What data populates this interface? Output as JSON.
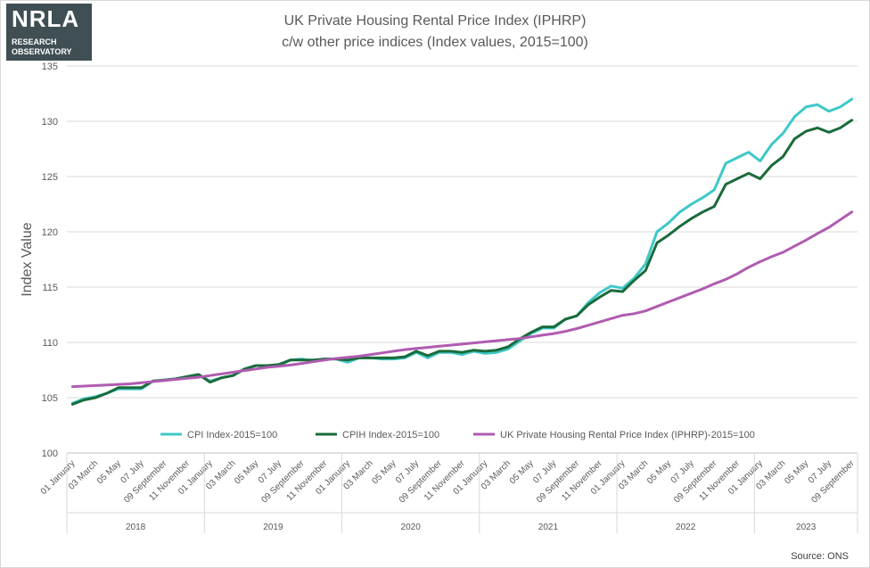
{
  "logo": {
    "brand": "NRLA",
    "line1": "RESEARCH",
    "line2": "OBSERVATORY",
    "colors": {
      "bg": "#3f4f54",
      "accent": "#7dbf2f"
    }
  },
  "title_line1": "UK Private Housing Rental Price Index (IPHRP)",
  "title_line2": "c/w other price indices (Index values, 2015=100)",
  "source": "Source: ONS",
  "chart_data": {
    "type": "line",
    "title": "UK Private Housing Rental Price Index (IPHRP) c/w other price indices (Index values, 2015=100)",
    "ylabel": "Index Value",
    "xlabel": "",
    "ylim": [
      100,
      135
    ],
    "yticks": [
      100,
      105,
      110,
      115,
      120,
      125,
      130,
      135
    ],
    "grid": true,
    "legend_position": "bottom-inside",
    "x_tick_labels": [
      "01 January",
      "03 March",
      "05 May",
      "07 July",
      "09 September",
      "11 November"
    ],
    "years": [
      "2018",
      "2019",
      "2020",
      "2021",
      "2022",
      "2023"
    ],
    "months_count": 69,
    "series": [
      {
        "name": "CPI Index-2015=100",
        "color": "#3ec8c8",
        "values": [
          104.5,
          104.9,
          105.1,
          105.4,
          105.8,
          105.8,
          105.8,
          106.5,
          106.6,
          106.7,
          106.9,
          107.1,
          106.5,
          106.8,
          107.0,
          107.6,
          107.9,
          107.9,
          107.9,
          108.4,
          108.5,
          108.3,
          108.5,
          108.5,
          108.2,
          108.6,
          108.6,
          108.5,
          108.5,
          108.6,
          109.1,
          108.6,
          109.1,
          109.1,
          108.9,
          109.2,
          109.0,
          109.1,
          109.4,
          110.1,
          110.8,
          111.3,
          111.3,
          112.1,
          112.4,
          113.6,
          114.5,
          115.1,
          114.9,
          115.8,
          117.1,
          120.0,
          120.8,
          121.8,
          122.5,
          123.1,
          123.8,
          126.2,
          126.7,
          127.2,
          126.4,
          127.9,
          128.9,
          130.4,
          131.3,
          131.5,
          130.9,
          131.3,
          132.0
        ]
      },
      {
        "name": "CPIH Index-2015=100",
        "color": "#1a6b3a",
        "values": [
          104.4,
          104.8,
          105.0,
          105.4,
          105.9,
          105.9,
          105.9,
          106.5,
          106.6,
          106.7,
          106.9,
          107.1,
          106.4,
          106.8,
          107.0,
          107.6,
          107.9,
          107.9,
          108.0,
          108.4,
          108.4,
          108.4,
          108.5,
          108.5,
          108.4,
          108.6,
          108.6,
          108.6,
          108.6,
          108.7,
          109.2,
          108.8,
          109.2,
          109.2,
          109.1,
          109.3,
          109.2,
          109.3,
          109.6,
          110.3,
          110.9,
          111.4,
          111.4,
          112.1,
          112.4,
          113.4,
          114.1,
          114.7,
          114.6,
          115.6,
          116.5,
          119.0,
          119.7,
          120.5,
          121.2,
          121.8,
          122.3,
          124.3,
          124.8,
          125.3,
          124.8,
          126.0,
          126.8,
          128.4,
          129.1,
          129.4,
          129.0,
          129.4,
          130.1
        ]
      },
      {
        "name": "UK Private Housing Rental Price Index (IPHRP)-2015=100",
        "color": "#b05cb0",
        "values": [
          106.0,
          106.05,
          106.1,
          106.15,
          106.2,
          106.25,
          106.35,
          106.45,
          106.55,
          106.65,
          106.75,
          106.85,
          107.0,
          107.15,
          107.3,
          107.45,
          107.6,
          107.75,
          107.85,
          107.95,
          108.1,
          108.25,
          108.4,
          108.55,
          108.65,
          108.75,
          108.9,
          109.05,
          109.2,
          109.35,
          109.45,
          109.55,
          109.65,
          109.75,
          109.85,
          109.95,
          110.05,
          110.15,
          110.25,
          110.35,
          110.5,
          110.65,
          110.8,
          111.0,
          111.25,
          111.55,
          111.85,
          112.15,
          112.45,
          112.6,
          112.85,
          113.25,
          113.65,
          114.05,
          114.45,
          114.85,
          115.3,
          115.7,
          116.2,
          116.8,
          117.3,
          117.75,
          118.15,
          118.7,
          119.25,
          119.85,
          120.4,
          121.1,
          121.8
        ]
      }
    ]
  }
}
